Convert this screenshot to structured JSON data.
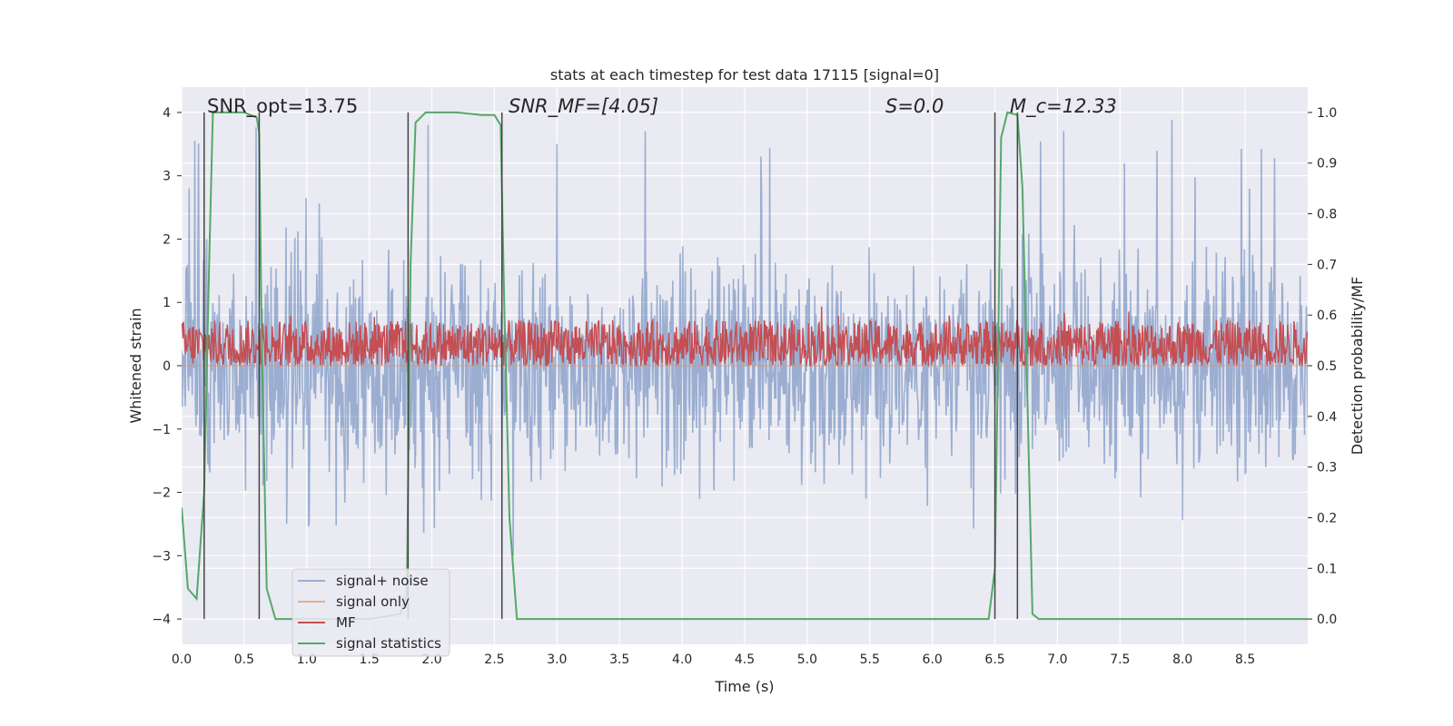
{
  "chart_data": {
    "type": "line",
    "title": "stats at each timestep for test data 17115 [signal=0]",
    "xlabel": "Time (s)",
    "ylabel": "Whitened strain",
    "y2label": "Detection probability/MF",
    "xlim": [
      0.0,
      9.0
    ],
    "ylim": [
      -4.4,
      4.4
    ],
    "y2lim": [
      -0.05,
      1.05
    ],
    "xticks": [
      "0.0",
      "0.5",
      "1.0",
      "1.5",
      "2.0",
      "2.5",
      "3.0",
      "3.5",
      "4.0",
      "4.5",
      "5.0",
      "5.5",
      "6.0",
      "6.5",
      "7.0",
      "7.5",
      "8.0",
      "8.5"
    ],
    "yticks": [
      "−4",
      "−3",
      "−2",
      "−1",
      "0",
      "1",
      "2",
      "3",
      "4"
    ],
    "y2ticks": [
      "0.0",
      "0.1",
      "0.2",
      "0.3",
      "0.4",
      "0.5",
      "0.6",
      "0.7",
      "0.8",
      "0.9",
      "1.0"
    ],
    "grid": true,
    "legend_position": "lower-left",
    "annotations": [
      {
        "id": "snr-opt",
        "text": "SNR_opt=13.75",
        "x": 0.2
      },
      {
        "id": "snr-mf",
        "text": "SNR_MF=[4.05]",
        "x": 2.6
      },
      {
        "id": "s-val",
        "text": "S=0.0",
        "x": 5.6
      },
      {
        "id": "mc-val",
        "text": "M_c=12.33",
        "x": 6.65
      }
    ],
    "vlines": [
      0.18,
      0.62,
      1.81,
      2.56,
      6.5,
      6.68
    ],
    "series": [
      {
        "name": "signal+ noise",
        "color": "#4c72b0",
        "axis": "left",
        "kind": "noise",
        "envelope_y": [
          -3.2,
          3.9
        ],
        "typical_y": [
          -2.2,
          2.2
        ]
      },
      {
        "name": "signal only",
        "color": "#dd8452",
        "axis": "left",
        "kind": "flat",
        "values": [
          0,
          0
        ]
      },
      {
        "name": "MF",
        "color": "#c44e52",
        "axis": "right",
        "kind": "noise-positive",
        "envelope_y": [
          0.5,
          0.62
        ],
        "typical_y": [
          0.5,
          0.59
        ]
      },
      {
        "name": "signal statistics",
        "color": "#55a868",
        "axis": "right",
        "kind": "line",
        "x": [
          0.0,
          0.05,
          0.12,
          0.18,
          0.22,
          0.25,
          0.3,
          0.5,
          0.6,
          0.62,
          0.64,
          0.68,
          0.75,
          1.0,
          1.5,
          1.75,
          1.8,
          1.83,
          1.87,
          1.95,
          2.2,
          2.4,
          2.5,
          2.55,
          2.58,
          2.62,
          2.68,
          2.75,
          3.0,
          4.0,
          5.0,
          6.0,
          6.45,
          6.5,
          6.55,
          6.6,
          6.68,
          6.72,
          6.8,
          6.85,
          7.0,
          8.0,
          9.0
        ],
        "y": [
          0.22,
          0.06,
          0.04,
          0.25,
          0.7,
          1.0,
          1.0,
          1.0,
          0.99,
          0.96,
          0.55,
          0.06,
          0.0,
          0.0,
          0.0,
          0.01,
          0.05,
          0.7,
          0.98,
          1.0,
          1.0,
          0.995,
          0.995,
          0.975,
          0.6,
          0.2,
          0.0,
          0.0,
          0.0,
          0.0,
          0.0,
          0.0,
          0.0,
          0.1,
          0.95,
          1.0,
          0.995,
          0.85,
          0.01,
          0.0,
          0.0,
          0.0,
          0.0
        ]
      }
    ]
  }
}
